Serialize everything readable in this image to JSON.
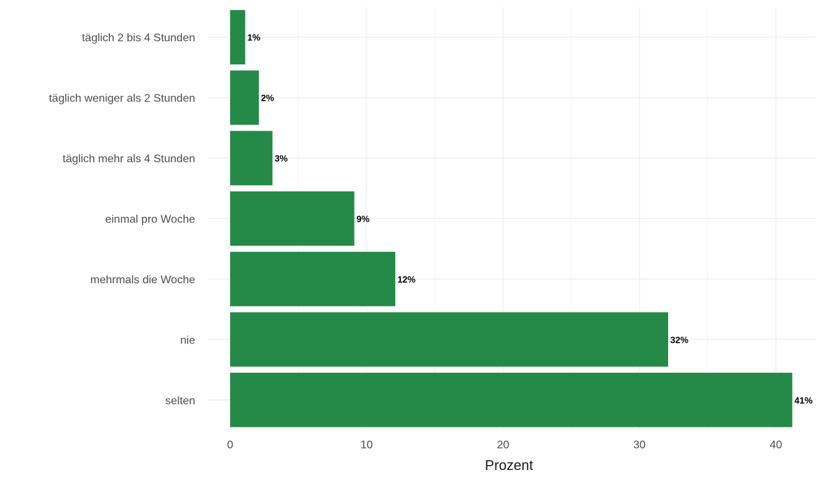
{
  "chart_data": {
    "type": "bar",
    "orientation": "horizontal",
    "categories": [
      "täglich 2 bis 4 Stunden",
      "täglich weniger als 2 Stunden",
      "täglich mehr als 4 Stunden",
      "einmal pro Woche",
      "mehrmals die Woche",
      "nie",
      "selten"
    ],
    "values": [
      1.1,
      2.1,
      3.1,
      9.1,
      12.1,
      32.1,
      41.2
    ],
    "data_labels": [
      "1%",
      "2%",
      "3%",
      "9%",
      "12%",
      "32%",
      "41%"
    ],
    "title": "",
    "xlabel": "Prozent",
    "ylabel": "",
    "xlim": [
      0,
      43
    ],
    "x_ticks": [
      0,
      10,
      20,
      30,
      40
    ],
    "grid": true,
    "bar_color": "#258a47"
  }
}
